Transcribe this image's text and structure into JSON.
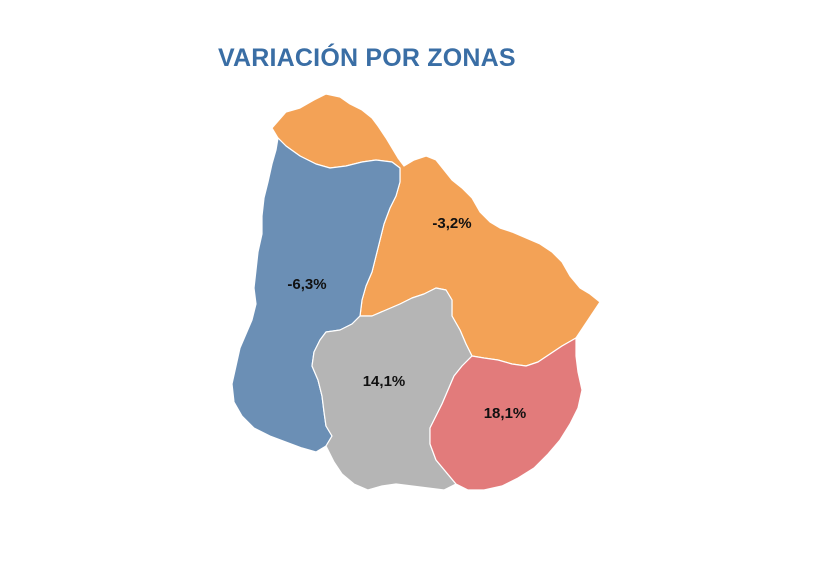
{
  "title": "VARIACIÓN POR ZONAS",
  "colors": {
    "title": "#3a6ea5",
    "north": "#f3a256",
    "west": "#6b8fb5",
    "center_south": "#b5b5b5",
    "east": "#e27b7b"
  },
  "zones": [
    {
      "id": "north",
      "value": "-3,2%"
    },
    {
      "id": "west",
      "value": "-6,3%"
    },
    {
      "id": "center_south",
      "value": "14,1%"
    },
    {
      "id": "east",
      "value": "18,1%"
    }
  ]
}
